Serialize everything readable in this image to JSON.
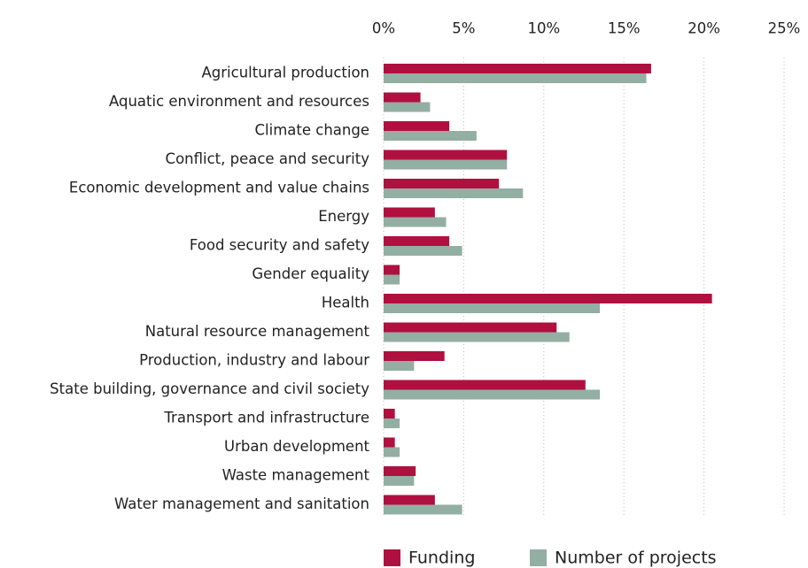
{
  "chart_data": {
    "type": "bar",
    "orientation": "horizontal",
    "categories": [
      "Agricultural production",
      "Aquatic environment and resources",
      "Climate change",
      "Conflict, peace and security",
      "Economic development and value chains",
      "Energy",
      "Food security and safety",
      "Gender equality",
      "Health",
      "Natural resource management",
      "Production, industry and labour",
      "State building, governance and civil society",
      "Transport and infrastructure",
      "Urban development",
      "Waste management",
      "Water management and sanitation"
    ],
    "series": [
      {
        "name": "Funding",
        "color": "#b0103f",
        "values": [
          16.7,
          2.3,
          4.1,
          7.7,
          7.2,
          3.2,
          4.1,
          1.0,
          20.5,
          10.8,
          3.8,
          12.6,
          0.7,
          0.7,
          2.0,
          3.2
        ]
      },
      {
        "name": "Number of projects",
        "color": "#93aea3",
        "values": [
          16.4,
          2.9,
          5.8,
          7.7,
          8.7,
          3.9,
          4.9,
          1.0,
          13.5,
          11.6,
          1.9,
          13.5,
          1.0,
          1.0,
          1.9,
          4.9
        ]
      }
    ],
    "xlim": [
      0,
      25
    ],
    "xticks": [
      {
        "value": 0,
        "label": "0%"
      },
      {
        "value": 5,
        "label": "5%"
      },
      {
        "value": 10,
        "label": "10%"
      },
      {
        "value": 15,
        "label": "15%"
      },
      {
        "value": 20,
        "label": "20%"
      },
      {
        "value": 25,
        "label": "25%"
      }
    ],
    "grid": true,
    "legend": "bottom"
  }
}
